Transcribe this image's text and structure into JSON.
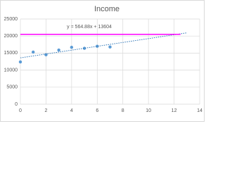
{
  "chart_data": {
    "type": "scatter",
    "title": "Income",
    "annotation": "y = 564.88x + 13604",
    "series": [
      {
        "kind": "points",
        "color": "#5b9bd5",
        "x": [
          0,
          1,
          2,
          3,
          4,
          5,
          6,
          7
        ],
        "values": [
          12400,
          15300,
          14500,
          15900,
          16700,
          16400,
          17000,
          16800
        ]
      },
      {
        "kind": "dotted-line",
        "color": "#2e75b6",
        "x": [
          0,
          13
        ],
        "values": [
          13604,
          20947
        ]
      },
      {
        "kind": "line",
        "color": "#ff00ff",
        "x": [
          0,
          12.5
        ],
        "values": [
          20500,
          20500
        ]
      }
    ],
    "xlim": [
      0,
      14
    ],
    "xticks": [
      0,
      2,
      4,
      6,
      8,
      10,
      12,
      14
    ],
    "ylim": [
      0,
      25000
    ],
    "yticks": [
      0,
      5000,
      10000,
      15000,
      20000,
      25000
    ],
    "grid": true
  }
}
